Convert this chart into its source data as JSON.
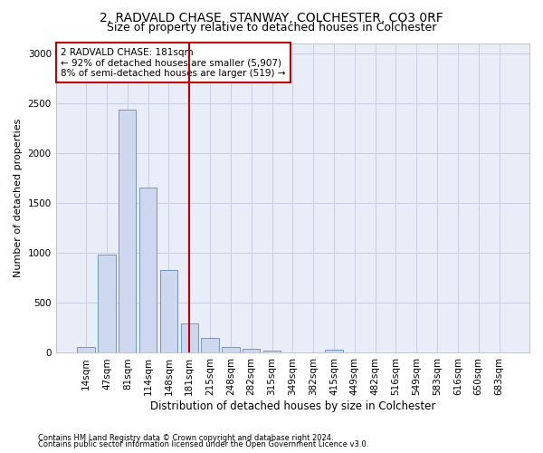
{
  "title1": "2, RADVALD CHASE, STANWAY, COLCHESTER, CO3 0RF",
  "title2": "Size of property relative to detached houses in Colchester",
  "xlabel": "Distribution of detached houses by size in Colchester",
  "ylabel": "Number of detached properties",
  "categories": [
    "14sqm",
    "47sqm",
    "81sqm",
    "114sqm",
    "148sqm",
    "181sqm",
    "215sqm",
    "248sqm",
    "282sqm",
    "315sqm",
    "349sqm",
    "382sqm",
    "415sqm",
    "449sqm",
    "482sqm",
    "516sqm",
    "549sqm",
    "583sqm",
    "616sqm",
    "650sqm",
    "683sqm"
  ],
  "values": [
    55,
    980,
    2430,
    1650,
    830,
    290,
    150,
    55,
    40,
    25,
    0,
    0,
    35,
    0,
    0,
    0,
    0,
    0,
    0,
    0,
    0
  ],
  "bar_color": "#cdd8ee",
  "bar_edge_color": "#7096c8",
  "reference_line_x": 5,
  "reference_line_color": "#c00000",
  "annotation_text": "2 RADVALD CHASE: 181sqm\n← 92% of detached houses are smaller (5,907)\n8% of semi-detached houses are larger (519) →",
  "annotation_box_color": "#c00000",
  "ylim": [
    0,
    3100
  ],
  "yticks": [
    0,
    500,
    1000,
    1500,
    2000,
    2500,
    3000
  ],
  "footer1": "Contains HM Land Registry data © Crown copyright and database right 2024.",
  "footer2": "Contains public sector information licensed under the Open Government Licence v3.0.",
  "bg_color": "#ffffff",
  "plot_bg_color": "#e8edf7",
  "grid_color": "#c8d0e0",
  "title1_fontsize": 10,
  "title2_fontsize": 9,
  "xlabel_fontsize": 8.5,
  "ylabel_fontsize": 8,
  "tick_fontsize": 7.5,
  "ann_fontsize": 7.5,
  "footer_fontsize": 6
}
